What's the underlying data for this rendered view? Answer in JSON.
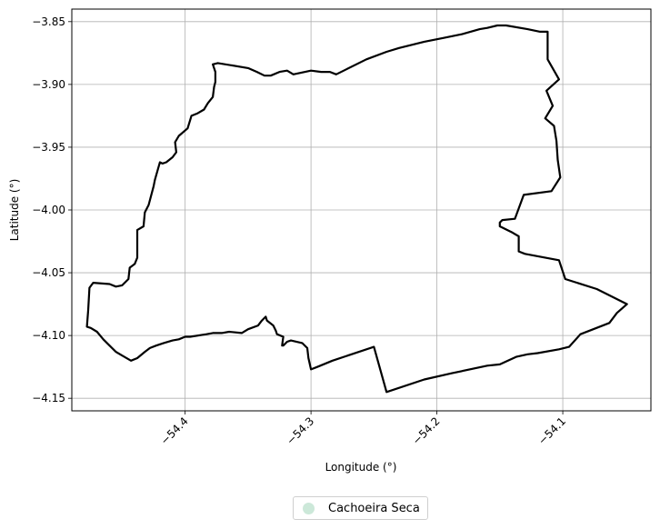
{
  "chart_data": {
    "type": "map",
    "title": "",
    "xlabel": "Longitude (°)",
    "ylabel": "Latitude (°)",
    "xlim": [
      -54.49,
      -54.03
    ],
    "ylim": [
      -4.16,
      -3.84
    ],
    "xticks": [
      -54.4,
      -54.3,
      -54.2,
      -54.1
    ],
    "xtick_labels": [
      "−54.4",
      "−54.3",
      "−54.2",
      "−54.1"
    ],
    "yticks": [
      -3.85,
      -3.9,
      -3.95,
      -4.0,
      -4.05,
      -4.1,
      -4.15
    ],
    "ytick_labels": [
      "−3.85",
      "−3.90",
      "−3.95",
      "−4.00",
      "−4.05",
      "−4.10",
      "−4.15"
    ],
    "grid": true,
    "legend_position": "below-center",
    "series": [
      {
        "name": "Cachoeira Seca",
        "color": "#000000",
        "legend_color": "#cce8d9",
        "coords": [
          [
            -54.378,
            -3.884
          ],
          [
            -54.374,
            -3.883
          ],
          [
            -54.35,
            -3.887
          ],
          [
            -54.343,
            -3.89
          ],
          [
            -54.337,
            -3.893
          ],
          [
            -54.332,
            -3.893
          ],
          [
            -54.325,
            -3.89
          ],
          [
            -54.319,
            -3.889
          ],
          [
            -54.314,
            -3.892
          ],
          [
            -54.3,
            -3.889
          ],
          [
            -54.292,
            -3.89
          ],
          [
            -54.285,
            -3.89
          ],
          [
            -54.28,
            -3.892
          ],
          [
            -54.272,
            -3.888
          ],
          [
            -54.256,
            -3.88
          ],
          [
            -54.24,
            -3.874
          ],
          [
            -54.23,
            -3.871
          ],
          [
            -54.21,
            -3.866
          ],
          [
            -54.195,
            -3.863
          ],
          [
            -54.18,
            -3.86
          ],
          [
            -54.166,
            -3.856
          ],
          [
            -54.16,
            -3.855
          ],
          [
            -54.152,
            -3.853
          ],
          [
            -54.145,
            -3.853
          ],
          [
            -54.128,
            -3.856
          ],
          [
            -54.118,
            -3.858
          ],
          [
            -54.112,
            -3.858
          ],
          [
            -54.112,
            -3.88
          ],
          [
            -54.103,
            -3.896
          ],
          [
            -54.113,
            -3.905
          ],
          [
            -54.108,
            -3.917
          ],
          [
            -54.114,
            -3.927
          ],
          [
            -54.107,
            -3.933
          ],
          [
            -54.105,
            -3.945
          ],
          [
            -54.104,
            -3.96
          ],
          [
            -54.102,
            -3.974
          ],
          [
            -54.109,
            -3.985
          ],
          [
            -54.131,
            -3.988
          ],
          [
            -54.138,
            -4.007
          ],
          [
            -54.148,
            -4.008
          ],
          [
            -54.15,
            -4.01
          ],
          [
            -54.15,
            -4.013
          ],
          [
            -54.14,
            -4.018
          ],
          [
            -54.135,
            -4.021
          ],
          [
            -54.135,
            -4.033
          ],
          [
            -54.13,
            -4.035
          ],
          [
            -54.103,
            -4.04
          ],
          [
            -54.098,
            -4.055
          ],
          [
            -54.073,
            -4.063
          ],
          [
            -54.049,
            -4.075
          ],
          [
            -54.057,
            -4.082
          ],
          [
            -54.063,
            -4.09
          ],
          [
            -54.086,
            -4.099
          ],
          [
            -54.095,
            -4.109
          ],
          [
            -54.103,
            -4.111
          ],
          [
            -54.12,
            -4.114
          ],
          [
            -54.128,
            -4.115
          ],
          [
            -54.137,
            -4.117
          ],
          [
            -54.15,
            -4.123
          ],
          [
            -54.16,
            -4.124
          ],
          [
            -54.188,
            -4.13
          ],
          [
            -54.21,
            -4.135
          ],
          [
            -54.24,
            -4.145
          ],
          [
            -54.25,
            -4.109
          ],
          [
            -54.283,
            -4.12
          ],
          [
            -54.295,
            -4.125
          ],
          [
            -54.3,
            -4.127
          ],
          [
            -54.302,
            -4.118
          ],
          [
            -54.303,
            -4.11
          ],
          [
            -54.307,
            -4.106
          ],
          [
            -54.316,
            -4.104
          ],
          [
            -54.319,
            -4.105
          ],
          [
            -54.322,
            -4.108
          ],
          [
            -54.323,
            -4.108
          ],
          [
            -54.322,
            -4.101
          ],
          [
            -54.327,
            -4.099
          ],
          [
            -54.328,
            -4.096
          ],
          [
            -54.33,
            -4.092
          ],
          [
            -54.335,
            -4.088
          ],
          [
            -54.336,
            -4.085
          ],
          [
            -54.339,
            -4.088
          ],
          [
            -54.342,
            -4.092
          ],
          [
            -54.35,
            -4.095
          ],
          [
            -54.355,
            -4.098
          ],
          [
            -54.365,
            -4.097
          ],
          [
            -54.371,
            -4.098
          ],
          [
            -54.378,
            -4.098
          ],
          [
            -54.383,
            -4.099
          ],
          [
            -54.396,
            -4.101
          ],
          [
            -54.4,
            -4.101
          ],
          [
            -54.405,
            -4.103
          ],
          [
            -54.41,
            -4.104
          ],
          [
            -54.417,
            -4.106
          ],
          [
            -54.423,
            -4.108
          ],
          [
            -54.428,
            -4.11
          ],
          [
            -54.432,
            -4.113
          ],
          [
            -54.438,
            -4.118
          ],
          [
            -54.443,
            -4.12
          ],
          [
            -54.45,
            -4.116
          ],
          [
            -54.455,
            -4.113
          ],
          [
            -54.46,
            -4.108
          ],
          [
            -54.465,
            -4.103
          ],
          [
            -54.47,
            -4.097
          ],
          [
            -54.475,
            -4.094
          ],
          [
            -54.478,
            -4.093
          ],
          [
            -54.477,
            -4.08
          ],
          [
            -54.476,
            -4.062
          ],
          [
            -54.473,
            -4.058
          ],
          [
            -54.46,
            -4.059
          ],
          [
            -54.455,
            -4.061
          ],
          [
            -54.45,
            -4.06
          ],
          [
            -54.445,
            -4.055
          ],
          [
            -54.444,
            -4.046
          ],
          [
            -54.44,
            -4.043
          ],
          [
            -54.438,
            -4.038
          ],
          [
            -54.438,
            -4.024
          ],
          [
            -54.438,
            -4.016
          ],
          [
            -54.433,
            -4.013
          ],
          [
            -54.432,
            -4.002
          ],
          [
            -54.429,
            -3.996
          ],
          [
            -54.425,
            -3.981
          ],
          [
            -54.424,
            -3.976
          ],
          [
            -54.42,
            -3.962
          ],
          [
            -54.418,
            -3.963
          ],
          [
            -54.415,
            -3.962
          ],
          [
            -54.41,
            -3.958
          ],
          [
            -54.407,
            -3.954
          ],
          [
            -54.408,
            -3.946
          ],
          [
            -54.405,
            -3.941
          ],
          [
            -54.398,
            -3.935
          ],
          [
            -54.395,
            -3.925
          ],
          [
            -54.39,
            -3.923
          ],
          [
            -54.385,
            -3.92
          ],
          [
            -54.382,
            -3.915
          ],
          [
            -54.378,
            -3.91
          ],
          [
            -54.377,
            -3.902
          ],
          [
            -54.376,
            -3.898
          ],
          [
            -54.376,
            -3.89
          ],
          [
            -54.378,
            -3.884
          ]
        ]
      }
    ]
  }
}
